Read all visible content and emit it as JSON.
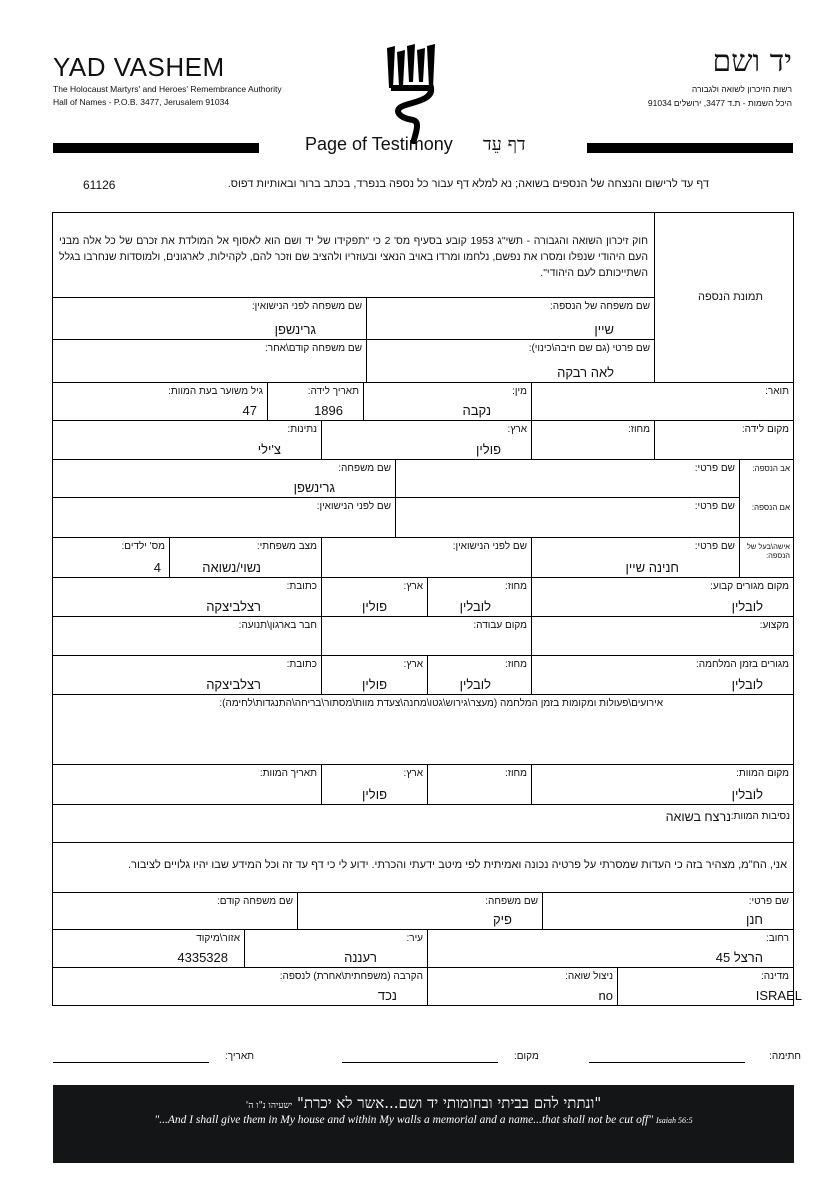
{
  "header": {
    "en_title": "YAD VASHEM",
    "en_sub1": "The Holocaust Martyrs' and Heroes' Remembrance Authority",
    "en_sub2": "Hall of Names - P.O.B. 3477, Jerusalem 91034",
    "he_title": "יד ושם",
    "he_sub1": "רשות הזיכרון לשואה ולגבורה",
    "he_sub2": "היכל השמות - ת.ד 3477, ירושלים 91034",
    "page_title_en": "Page of Testimony",
    "page_title_he": "דף עֵד",
    "instructions": "דף עד לרישום והנצחה של הנספים בשואה; נא למלא דף עבור כל נספה בנפרד, בכתב ברור ובאותיות דפוס.",
    "form_number": "61126"
  },
  "law_text": "חוק זיכרון השואה והגבורה - תשי\"ג 1953 קובע בסעיף מס' 2 כי \"תפקידו של יד ושם הוא לאסוף אל המולדת את זכרם של כל אלה מבני העם היהודי שנפלו ומסרו את נפשם, נלחמו ומרדו באויב הנאצי ובעוזריו ולהציב שם וזכר להם, לקהילות, לארגונים, ולמוסדות שנחרבו בגלל השתייכותם לעם היהודי\".",
  "photo_label": "תמונת הנספה",
  "victim": {
    "surname": {
      "label": "שם משפחה של הנספה:",
      "value": "שיין"
    },
    "maiden_name": {
      "label": "שם משפחה לפני הנישואין:",
      "value": "גרינשפן"
    },
    "first_name": {
      "label": "שם פרטי (גם שם חיבה\\כינוי):",
      "value": "לאה רבקה"
    },
    "previous_name": {
      "label": "שם משפחה קודם\\אחר:",
      "value": ""
    },
    "title": {
      "label": "תואר:",
      "value": ""
    },
    "gender": {
      "label": "מין:",
      "value": "נקבה"
    },
    "birth_date": {
      "label": "תאריך לידה:",
      "value": "1896"
    },
    "age_at_death": {
      "label": "גיל משוער בעת המוות:",
      "value": "47"
    },
    "birth_place": {
      "label": "מקום לידה:",
      "value": ""
    },
    "birth_district": {
      "label": "מחוז:",
      "value": ""
    },
    "birth_country": {
      "label": "ארץ:",
      "value": "פולין"
    },
    "nationality": {
      "label": "נתינות:",
      "value": "צ'ילי"
    }
  },
  "father": {
    "label": "אב הנספה:",
    "first_label": "שם פרטי:",
    "first": "",
    "surname_label": "שם משפחה:",
    "surname": "גרינשפן"
  },
  "mother": {
    "label": "אם הנספה:",
    "first_label": "שם פרטי:",
    "first": "",
    "maiden_label": "שם לפני הנישואין:",
    "maiden": ""
  },
  "spouse": {
    "label": "אישה\\בעל של הנספה:",
    "first_label": "שם פרטי:",
    "first": "חנינה שיין",
    "maiden_label": "שם לפני הנישואין:",
    "maiden": "",
    "marital_label": "מצב משפחתי:",
    "marital": "נשוי/נשואה",
    "children_label": "מס' ילדים:",
    "children": "4"
  },
  "residence": {
    "label": "מקום מגורים קבוע:",
    "value": "לובלין",
    "district_label": "מחוז:",
    "district": "לובלין",
    "country_label": "ארץ:",
    "country": "פולין",
    "address_label": "כתובת:",
    "address": "רצלביצקה"
  },
  "work": {
    "profession_label": "מקצוע:",
    "profession": "",
    "workplace_label": "מקום עבודה:",
    "workplace": "",
    "org_label": "חבר בארגון\\תנועה:",
    "org": ""
  },
  "wartime": {
    "label": "מגורים בזמן המלחמה:",
    "value": "לובלין",
    "district_label": "מחוז:",
    "district": "לובלין",
    "country_label": "ארץ:",
    "country": "פולין",
    "address_label": "כתובת:",
    "address": "רצלביצקה"
  },
  "events_label": "אירועים\\פעולות ומקומות בזמן המלחמה (מעצר\\גירוש\\גטו\\מחנה\\צעדת מוות\\מסתור\\בריחה\\התנגדות\\לחימה):",
  "death": {
    "place_label": "מקום המוות:",
    "place": "לובלין",
    "district_label": "מחוז:",
    "district": "",
    "country_label": "ארץ:",
    "country": "פולין",
    "date_label": "תאריך המוות:",
    "date": "",
    "circ_label": "נסיבות המוות:",
    "circ": "נרצח בשואה"
  },
  "declaration": "אני, הח\"מ, מצהיר בזה כי העדות שמסרתי על פרטיה נכונה ואמיתית לפי מיטב ידעתי והכרתי. ידוע לי כי דף עד זה וכל המידע שבו יהיו גלויים לציבור.",
  "submitter": {
    "first_label": "שם פרטי:",
    "first": "חנן",
    "surname_label": "שם משפחה:",
    "surname": "פיק",
    "prev_label": "שם משפחה קודם:",
    "prev": "",
    "street_label": "רחוב:",
    "street": "הרצל 45",
    "city_label": "עיר:",
    "city": "רעננה",
    "zip_label": "אזור\\מיקוד",
    "zip": "4335328",
    "country_label": "מדינה:",
    "country": "ISRAEL",
    "survivor_label": "ניצול שואה:",
    "survivor": "no",
    "relation_label": "הקרבה (משפחתית\\אחרת) לנספה:",
    "relation": "נכד"
  },
  "signature": {
    "sign_label": "חתימה:",
    "place_label": "מקום:",
    "date_label": "תאריך:"
  },
  "banner": {
    "hebrew": "\"ונתתי להם בביתי ובחומותי יד ושם...אשר לא יכרת\"",
    "hebrew_source": "ישעיהו נ\"ו ה'",
    "english": "\"...And I shall give them in My house and within My walls a memorial and a name...that shall not be cut off\"",
    "english_source": "Isaiah 56:5"
  }
}
